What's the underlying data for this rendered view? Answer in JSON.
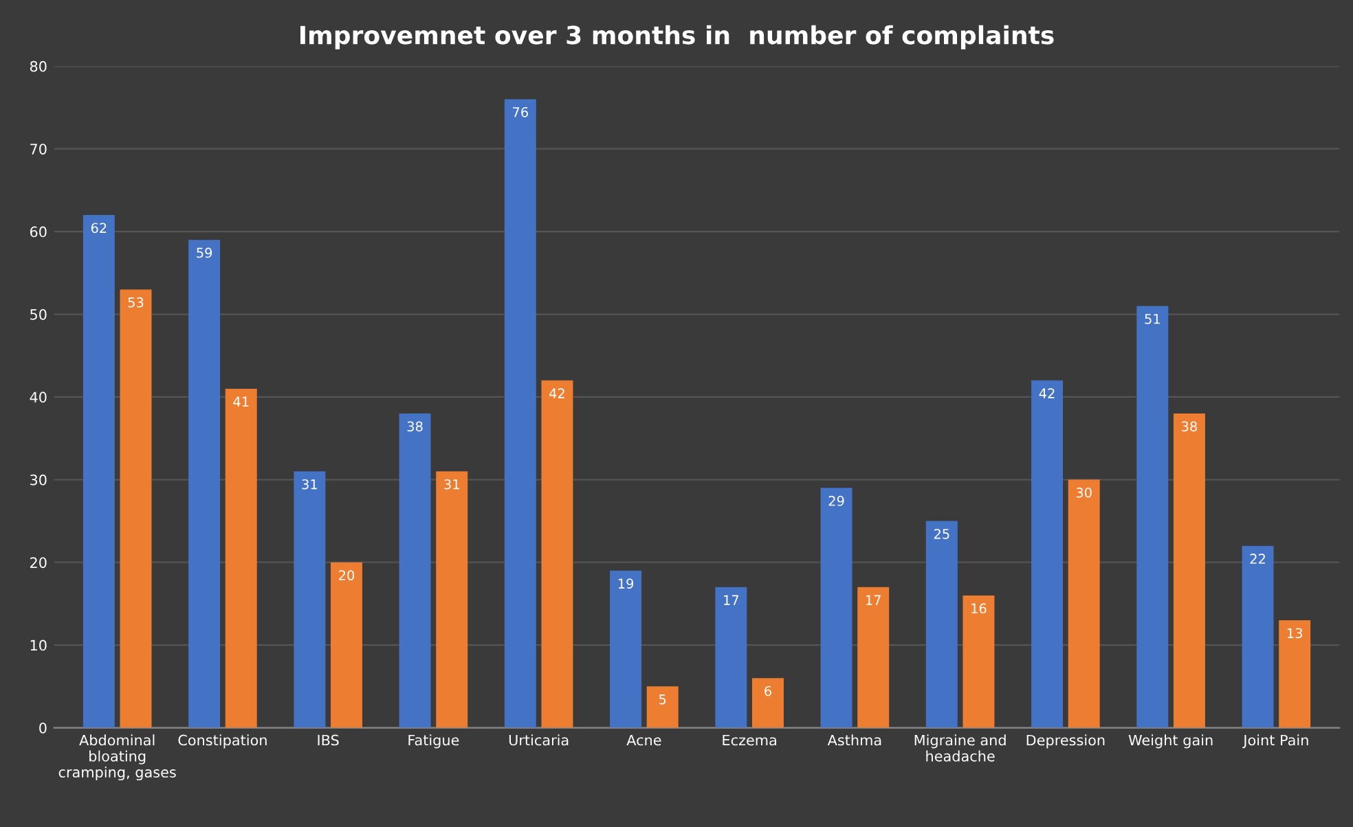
{
  "chart_data": {
    "type": "bar",
    "title": "Improvemnet over 3 months in  number of complaints",
    "categories": [
      "Abdominal\nbloating\ncramping, gases",
      "Constipation",
      "IBS",
      "Fatigue",
      "Urticaria",
      "Acne",
      "Eczema",
      "Asthma",
      "Migraine and\nheadache",
      "Depression",
      "Weight gain",
      "Joint Pain"
    ],
    "series": [
      {
        "color": "#4472c4",
        "values": [
          62,
          59,
          31,
          38,
          76,
          19,
          17,
          29,
          25,
          42,
          51,
          22
        ]
      },
      {
        "color": "#ed7d31",
        "values": [
          53,
          41,
          20,
          31,
          42,
          5,
          6,
          17,
          16,
          30,
          38,
          13
        ]
      }
    ],
    "ylim": [
      0,
      80
    ],
    "yticks": [
      0,
      10,
      20,
      30,
      40,
      50,
      60,
      70,
      80
    ],
    "grid": "y",
    "data_labels": true
  }
}
